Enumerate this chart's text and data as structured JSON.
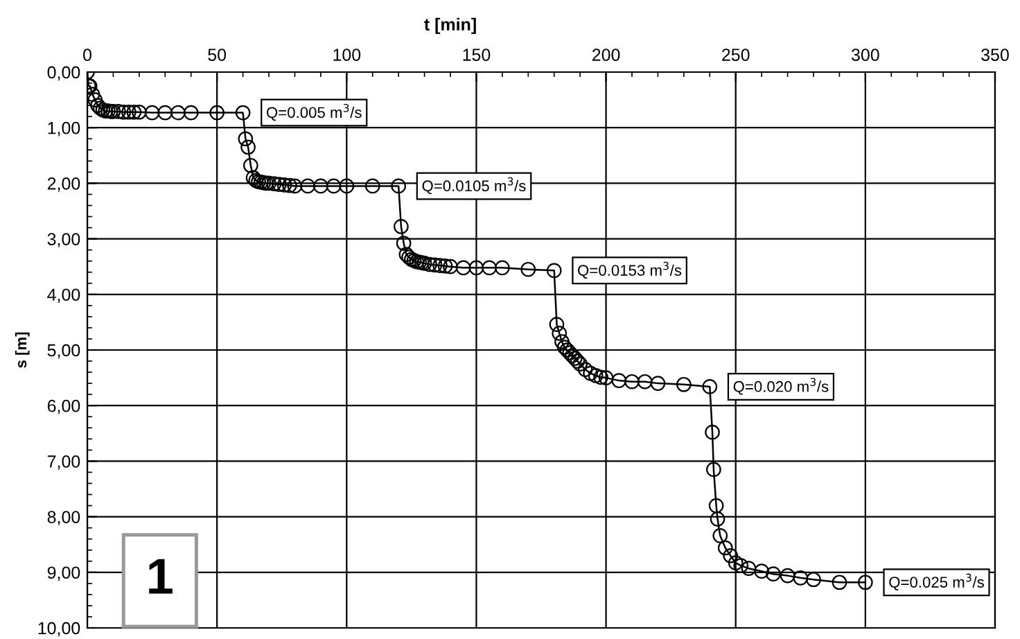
{
  "chart_data": {
    "type": "line",
    "xlabel": "t [min]",
    "ylabel": "s [m]",
    "x": [
      0,
      0.5,
      1,
      2,
      3,
      4,
      5,
      6,
      7,
      8,
      9,
      10,
      12,
      14,
      16,
      18,
      20,
      25,
      30,
      35,
      40,
      50,
      60,
      61,
      62,
      63,
      64,
      65,
      66,
      67,
      68,
      69,
      70,
      72,
      74,
      76,
      78,
      80,
      85,
      90,
      95,
      100,
      110,
      120,
      121,
      122,
      123,
      124,
      125,
      126,
      127,
      128,
      129,
      130,
      132,
      134,
      136,
      138,
      140,
      145,
      150,
      155,
      160,
      170,
      180,
      181,
      182,
      183,
      184,
      185,
      186,
      187,
      188,
      189,
      190,
      192,
      194,
      196,
      198,
      200,
      205,
      210,
      215,
      220,
      230,
      240,
      241,
      241.5,
      242.5,
      243,
      244,
      246,
      248,
      250,
      252,
      255,
      260,
      264.5,
      270,
      275,
      280,
      290,
      300
    ],
    "series": [
      {
        "color": "#000000",
        "values": [
          0,
          0.25,
          0.25,
          0.4,
          0.5,
          0.6,
          0.65,
          0.68,
          0.7,
          0.7,
          0.71,
          0.71,
          0.71,
          0.72,
          0.72,
          0.72,
          0.72,
          0.73,
          0.73,
          0.73,
          0.73,
          0.73,
          0.73,
          1.2,
          1.35,
          1.68,
          1.9,
          1.95,
          1.97,
          1.98,
          1.99,
          2.0,
          2.0,
          2.01,
          2.02,
          2.03,
          2.04,
          2.05,
          2.05,
          2.05,
          2.05,
          2.05,
          2.05,
          2.05,
          2.78,
          3.08,
          3.28,
          3.33,
          3.37,
          3.39,
          3.41,
          3.42,
          3.43,
          3.44,
          3.46,
          3.47,
          3.48,
          3.49,
          3.5,
          3.52,
          3.52,
          3.52,
          3.52,
          3.55,
          3.57,
          4.54,
          4.7,
          4.85,
          4.95,
          5.0,
          5.05,
          5.1,
          5.15,
          5.2,
          5.25,
          5.35,
          5.42,
          5.46,
          5.49,
          5.5,
          5.55,
          5.57,
          5.57,
          5.6,
          5.62,
          5.66,
          6.48,
          7.15,
          7.8,
          8.04,
          8.34,
          8.56,
          8.7,
          8.83,
          8.88,
          8.93,
          8.98,
          9.03,
          9.06,
          9.1,
          9.13,
          9.18,
          9.18
        ]
      }
    ],
    "xlim": [
      0,
      350
    ],
    "xticks": [
      0,
      50,
      100,
      150,
      200,
      250,
      300,
      350
    ],
    "ylim": [
      10,
      0
    ],
    "yticks": [
      {
        "value": 0,
        "label": "0,00"
      },
      {
        "value": 1,
        "label": "1,00"
      },
      {
        "value": 2,
        "label": "2,00"
      },
      {
        "value": 3,
        "label": "3,00"
      },
      {
        "value": 4,
        "label": "4,00"
      },
      {
        "value": 5,
        "label": "5,00"
      },
      {
        "value": 6,
        "label": "6,00"
      },
      {
        "value": 7,
        "label": "7,00"
      },
      {
        "value": 8,
        "label": "8,00"
      },
      {
        "value": 9,
        "label": "9,00"
      },
      {
        "value": 10,
        "label": "10,00"
      }
    ],
    "grid": true,
    "marker": "circle",
    "line_style": "solid",
    "legend": false,
    "annotations": [
      {
        "text": "Q=0.005 m$^{3}$/s",
        "x": 60,
        "y": 0.73
      },
      {
        "text": "Q=0.0105 m$^{3}$/s",
        "x": 120,
        "y": 2.05
      },
      {
        "text": "Q=0.0153 m$^{3}$/s",
        "x": 180,
        "y": 3.57
      },
      {
        "text": "Q=0.020 m$^{3}$/s",
        "x": 240,
        "y": 5.66
      },
      {
        "text": "Q=0.025 m$^{3}$/s",
        "x": 300,
        "y": 9.18
      },
      "1"
    ]
  }
}
